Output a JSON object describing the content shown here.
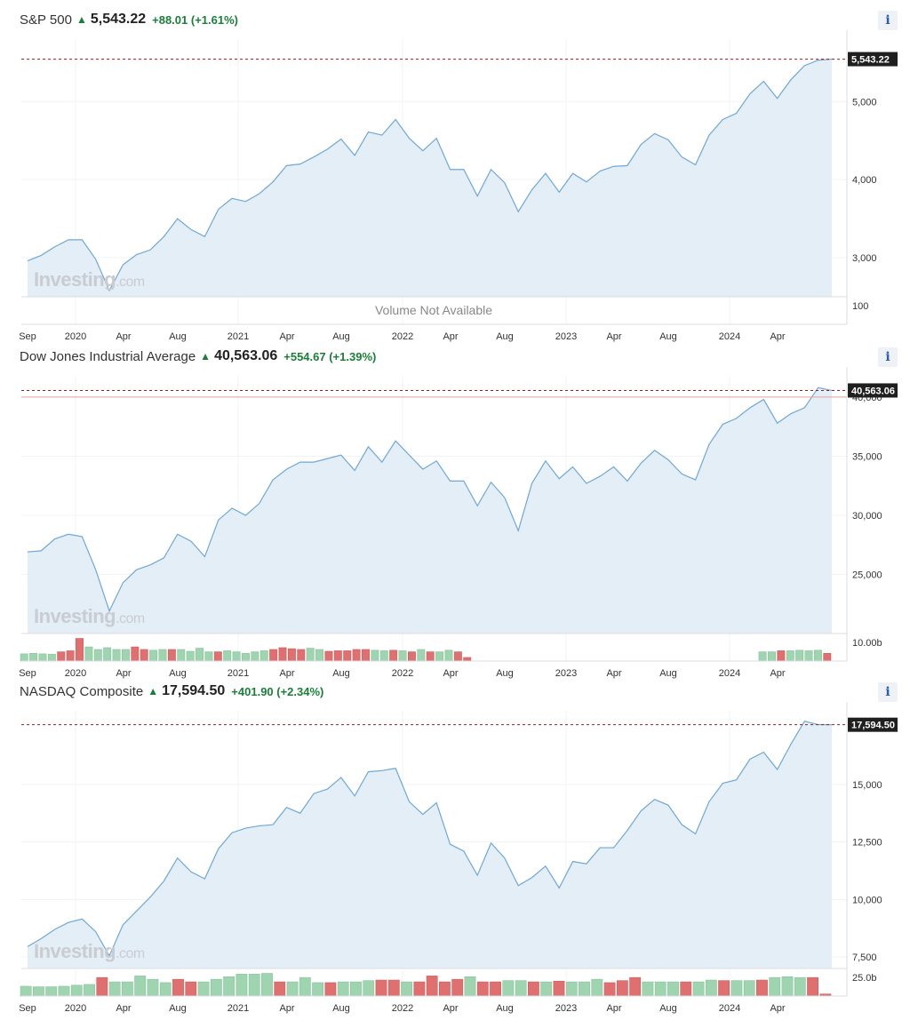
{
  "x_axis_labels": [
    "Sep",
    "2020",
    "Apr",
    "Aug",
    "2021",
    "Apr",
    "Aug",
    "2022",
    "Apr",
    "Aug",
    "2023",
    "Apr",
    "Aug",
    "2024",
    "Apr"
  ],
  "colors": {
    "line": "#6fa8d6",
    "area": "#e4eef7",
    "up": "#1a7f37",
    "vol_up": "#9fd4b0",
    "vol_down": "#e07070",
    "ref_dashed": "#9c1b1b",
    "tag_bg": "#1f1f1f",
    "tag_text": "#ffffff"
  },
  "icons": {
    "info": "info-icon",
    "arrow": "up-arrow-icon"
  },
  "watermark": {
    "brand": "Investing",
    "suffix": ".com"
  },
  "chart_data": [
    {
      "type": "area",
      "header": {
        "name": "S&P 500",
        "price": "5,543.22",
        "change": "+88.01 (+1.61%)"
      },
      "info_label": "i",
      "ylim": [
        2500,
        5800
      ],
      "y_ticks": [
        3000,
        4000,
        5000
      ],
      "y_tick_labels": [
        "3,000",
        "4,000",
        "5,000"
      ],
      "last_price_tag": "5,543.22",
      "reference_price": 5543.22,
      "volume_message": "Volume Not Available",
      "volume_axis_label": "100",
      "series": [
        {
          "values": [
            2960,
            3030,
            3140,
            3230,
            3230,
            2980,
            2580,
            2910,
            3040,
            3100,
            3270,
            3500,
            3360,
            3270,
            3620,
            3760,
            3720,
            3820,
            3970,
            4180,
            4200,
            4290,
            4390,
            4520,
            4310,
            4610,
            4570,
            4770,
            4530,
            4370,
            4530,
            4130,
            4130,
            3790,
            4130,
            3960,
            3590,
            3870,
            4080,
            3840,
            4080,
            3970,
            4110,
            4170,
            4180,
            4450,
            4590,
            4510,
            4290,
            4190,
            4570,
            4770,
            4850,
            5100,
            5260,
            5040,
            5280,
            5460,
            5530,
            5543
          ]
        }
      ],
      "volume": []
    },
    {
      "type": "area",
      "header": {
        "name": "Dow Jones Industrial Average",
        "price": "40,563.06",
        "change": "+554.67 (+1.39%)"
      },
      "info_label": "i",
      "ylim": [
        20000,
        41800
      ],
      "y_ticks": [
        25000,
        30000,
        35000,
        40000
      ],
      "y_tick_labels": [
        "25,000",
        "30,000",
        "35,000",
        "40,000"
      ],
      "last_price_tag": "40,563.06",
      "reference_price": 40563.06,
      "prev_close": 40008.39,
      "volume_axis_label": "10.00b",
      "series": [
        {
          "values": [
            26900,
            27000,
            28000,
            28400,
            28200,
            25400,
            21900,
            24300,
            25400,
            25800,
            26400,
            28400,
            27800,
            26500,
            29600,
            30600,
            30000,
            31000,
            33000,
            33900,
            34500,
            34500,
            34800,
            35100,
            33800,
            35800,
            34500,
            36300,
            35100,
            33900,
            34600,
            32900,
            32900,
            30800,
            32800,
            31500,
            28700,
            32700,
            34600,
            33100,
            34100,
            32700,
            33300,
            34100,
            32900,
            34400,
            35500,
            34700,
            33500,
            33000,
            36000,
            37700,
            38200,
            39100,
            39800,
            37800,
            38600,
            39100,
            40800,
            40563
          ]
        }
      ],
      "volume": [
        0.28,
        0.3,
        0.28,
        0.27,
        0.36,
        0.4,
        0.88,
        0.55,
        0.45,
        0.52,
        0.45,
        0.45,
        0.55,
        0.45,
        0.42,
        0.45,
        0.45,
        0.45,
        0.38,
        0.5,
        0.36,
        0.36,
        0.4,
        0.36,
        0.3,
        0.36,
        0.4,
        0.45,
        0.52,
        0.48,
        0.45,
        0.5,
        0.45,
        0.38,
        0.4,
        0.4,
        0.45,
        0.45,
        0.42,
        0.4,
        0.42,
        0.4,
        0.36,
        0.45,
        0.36,
        0.36,
        0.42,
        0.36,
        0.14,
        0,
        0,
        0,
        0,
        0,
        0,
        0,
        0,
        0,
        0,
        0,
        0,
        0,
        0,
        0,
        0,
        0,
        0,
        0,
        0,
        0,
        0,
        0,
        0,
        0,
        0,
        0,
        0,
        0,
        0,
        0,
        0.36,
        0.36,
        0.4,
        0.4,
        0.42,
        0.4,
        0.42,
        0.3
      ],
      "volume_up": [
        true,
        true,
        true,
        true,
        false,
        false,
        false,
        true,
        true,
        true,
        true,
        true,
        false,
        false,
        true,
        true,
        false,
        true,
        true,
        true,
        true,
        false,
        true,
        true,
        true,
        true,
        true,
        false,
        false,
        false,
        false,
        true,
        true,
        false,
        false,
        false,
        false,
        false,
        true,
        true,
        false,
        true,
        false,
        true,
        false,
        true,
        true,
        false,
        false,
        true,
        true,
        true,
        true,
        true,
        true,
        true,
        true,
        true,
        true,
        true,
        true,
        true,
        true,
        true,
        true,
        true,
        true,
        true,
        true,
        true,
        true,
        true,
        true,
        true,
        true,
        true,
        true,
        true,
        true,
        true,
        true,
        true,
        false,
        true,
        true,
        true,
        true,
        false
      ]
    },
    {
      "type": "area",
      "header": {
        "name": "NASDAQ Composite",
        "price": "17,594.50",
        "change": "+401.90 (+2.34%)"
      },
      "info_label": "i",
      "ylim": [
        7000,
        18200
      ],
      "y_ticks": [
        7500,
        10000,
        12500,
        15000
      ],
      "y_tick_labels": [
        "7,500",
        "10,000",
        "12,500",
        "15,000"
      ],
      "last_price_tag": "17,594.50",
      "reference_price": 17594.5,
      "volume_axis_label": "25.0b",
      "series": [
        {
          "values": [
            7950,
            8300,
            8700,
            9000,
            9150,
            8600,
            7550,
            8900,
            9500,
            10100,
            10800,
            11800,
            11200,
            10900,
            12200,
            12900,
            13100,
            13200,
            13250,
            14000,
            13750,
            14600,
            14800,
            15300,
            14500,
            15550,
            15600,
            15700,
            14250,
            13700,
            14200,
            12400,
            12100,
            11050,
            12450,
            11800,
            10600,
            10950,
            11450,
            10500,
            11650,
            11550,
            12250,
            12250,
            13000,
            13850,
            14350,
            14100,
            13250,
            12850,
            14250,
            15050,
            15200,
            16100,
            16400,
            15650,
            16750,
            17750,
            17600,
            17594
          ]
        }
      ],
      "volume": [
        0.38,
        0.36,
        0.36,
        0.38,
        0.42,
        0.45,
        0.72,
        0.55,
        0.55,
        0.78,
        0.65,
        0.52,
        0.65,
        0.55,
        0.55,
        0.65,
        0.75,
        0.85,
        0.85,
        0.88,
        0.55,
        0.55,
        0.72,
        0.52,
        0.52,
        0.55,
        0.55,
        0.6,
        0.62,
        0.62,
        0.55,
        0.55,
        0.78,
        0.55,
        0.65,
        0.75,
        0.55,
        0.55,
        0.6,
        0.6,
        0.55,
        0.55,
        0.58,
        0.55,
        0.55,
        0.65,
        0.52,
        0.6,
        0.72,
        0.55,
        0.55,
        0.55,
        0.55,
        0.55,
        0.62,
        0.6,
        0.6,
        0.6,
        0.62,
        0.72,
        0.75,
        0.72,
        0.72,
        0.08
      ],
      "volume_up": [
        true,
        true,
        true,
        true,
        true,
        true,
        false,
        true,
        true,
        true,
        true,
        true,
        false,
        false,
        true,
        true,
        true,
        true,
        true,
        true,
        false,
        true,
        true,
        true,
        false,
        true,
        true,
        true,
        false,
        false,
        true,
        false,
        false,
        false,
        false,
        true,
        false,
        false,
        true,
        true,
        false,
        true,
        false,
        true,
        true,
        true,
        false,
        false,
        false,
        true,
        true,
        true,
        false,
        true,
        true,
        false,
        true,
        true,
        false,
        true,
        true,
        true,
        false,
        false
      ]
    }
  ]
}
